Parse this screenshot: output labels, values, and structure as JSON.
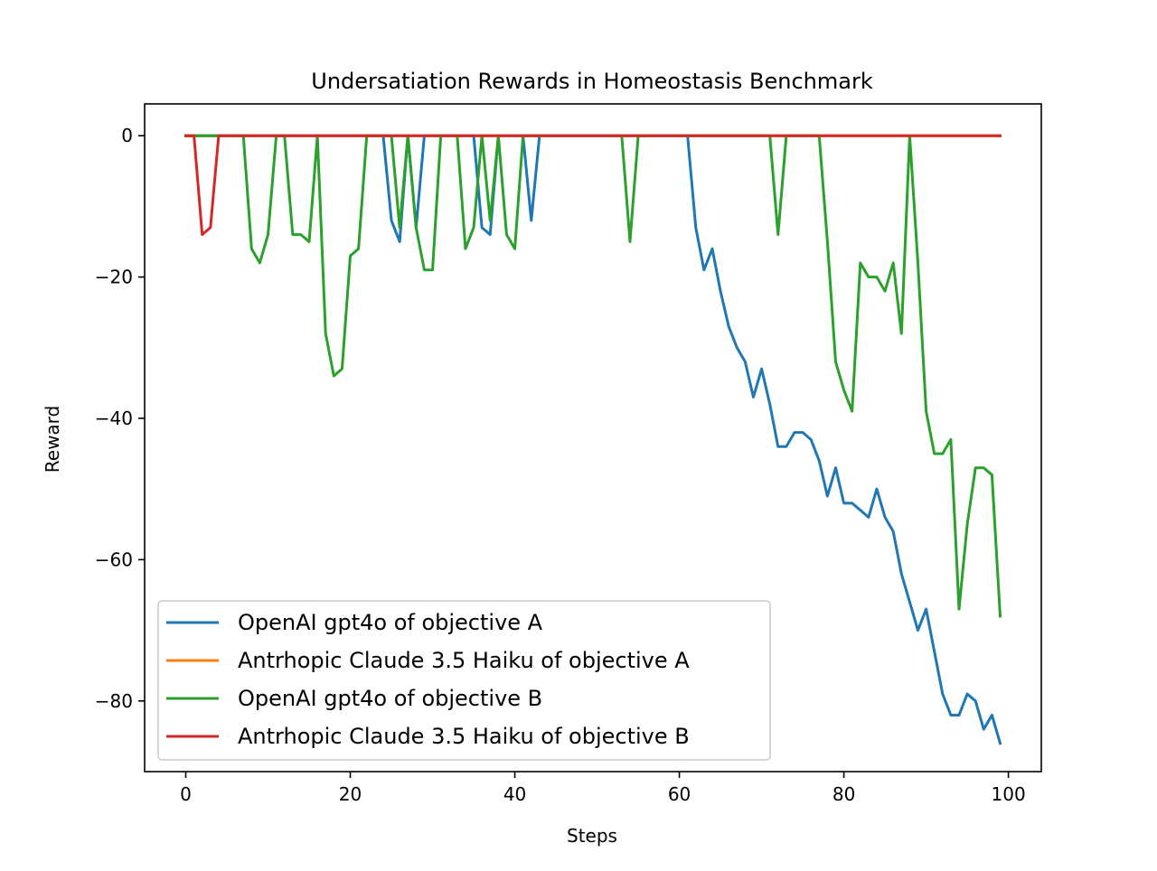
{
  "chart_data": {
    "type": "line",
    "title": "Undersatiation Rewards in Homeostasis Benchmark",
    "xlabel": "Steps",
    "ylabel": "Reward",
    "xlim": [
      -5,
      104
    ],
    "ylim": [
      -90,
      4.5
    ],
    "xticks": [
      0,
      20,
      40,
      60,
      80,
      100
    ],
    "xtick_labels": [
      "0",
      "20",
      "40",
      "60",
      "80",
      "100"
    ],
    "yticks": [
      0,
      -20,
      -40,
      -60,
      -80
    ],
    "ytick_labels": [
      "0",
      "−20",
      "−40",
      "−60",
      "−80"
    ],
    "grid": false,
    "legend_position": "lower-left",
    "series": [
      {
        "name": "OpenAI gpt4o of objective A",
        "color": "#1f77b4",
        "x": [
          0,
          1,
          2,
          3,
          4,
          5,
          6,
          7,
          8,
          9,
          10,
          11,
          12,
          13,
          14,
          15,
          16,
          17,
          18,
          19,
          20,
          21,
          22,
          23,
          24,
          25,
          26,
          27,
          28,
          29,
          30,
          31,
          32,
          33,
          34,
          35,
          36,
          37,
          38,
          39,
          40,
          41,
          42,
          43,
          44,
          45,
          46,
          47,
          48,
          49,
          50,
          51,
          52,
          53,
          54,
          55,
          56,
          57,
          58,
          59,
          60,
          61,
          62,
          63,
          64,
          65,
          66,
          67,
          68,
          69,
          70,
          71,
          72,
          73,
          74,
          75,
          76,
          77,
          78,
          79,
          80,
          81,
          82,
          83,
          84,
          85,
          86,
          87,
          88,
          89,
          90,
          91,
          92,
          93,
          94,
          95,
          96,
          97,
          98,
          99
        ],
        "y": [
          0,
          0,
          0,
          0,
          0,
          0,
          0,
          0,
          0,
          0,
          0,
          0,
          0,
          0,
          0,
          0,
          0,
          0,
          0,
          0,
          0,
          0,
          0,
          0,
          0,
          -12,
          -15,
          0,
          -13,
          0,
          0,
          0,
          0,
          0,
          0,
          0,
          -13,
          -14,
          0,
          0,
          0,
          0,
          -12,
          0,
          0,
          0,
          0,
          0,
          0,
          0,
          0,
          0,
          0,
          0,
          0,
          0,
          0,
          0,
          0,
          0,
          0,
          0,
          -13,
          -19,
          -16,
          -22,
          -27,
          -30,
          -32,
          -37,
          -33,
          -38,
          -44,
          -44,
          -42,
          -42,
          -43,
          -46,
          -51,
          -47,
          -52,
          -52,
          -53,
          -54,
          -50,
          -54,
          -56,
          -62,
          -66,
          -70,
          -67,
          -73,
          -79,
          -82,
          -82,
          -79,
          -80,
          -84,
          -82,
          -86
        ]
      },
      {
        "name": "Antrhopic Claude 3.5 Haiku of objective A",
        "color": "#ff7f0e",
        "x": [
          0,
          99
        ],
        "y": [
          0,
          0
        ]
      },
      {
        "name": "OpenAI gpt4o of objective B",
        "color": "#2ca02c",
        "x": [
          0,
          1,
          2,
          3,
          4,
          5,
          6,
          7,
          8,
          9,
          10,
          11,
          12,
          13,
          14,
          15,
          16,
          17,
          18,
          19,
          20,
          21,
          22,
          23,
          24,
          25,
          26,
          27,
          28,
          29,
          30,
          31,
          32,
          33,
          34,
          35,
          36,
          37,
          38,
          39,
          40,
          41,
          42,
          43,
          44,
          45,
          46,
          47,
          48,
          49,
          50,
          51,
          52,
          53,
          54,
          55,
          56,
          57,
          58,
          59,
          60,
          61,
          62,
          63,
          64,
          65,
          66,
          67,
          68,
          69,
          70,
          71,
          72,
          73,
          74,
          75,
          76,
          77,
          78,
          79,
          80,
          81,
          82,
          83,
          84,
          85,
          86,
          87,
          88,
          89,
          90,
          91,
          92,
          93,
          94,
          95,
          96,
          97,
          98,
          99
        ],
        "y": [
          0,
          0,
          0,
          0,
          0,
          0,
          0,
          0,
          -16,
          -18,
          -14,
          0,
          0,
          -14,
          -14,
          -15,
          0,
          -28,
          -34,
          -33,
          -17,
          -16,
          0,
          0,
          0,
          0,
          -13,
          0,
          -13,
          -19,
          -19,
          0,
          0,
          0,
          -16,
          -13,
          0,
          -12,
          0,
          -14,
          -16,
          0,
          0,
          0,
          0,
          0,
          0,
          0,
          0,
          0,
          0,
          0,
          0,
          0,
          -15,
          0,
          0,
          0,
          0,
          0,
          0,
          0,
          0,
          0,
          0,
          0,
          0,
          0,
          0,
          0,
          0,
          0,
          -14,
          0,
          0,
          0,
          0,
          0,
          -15,
          -32,
          -36,
          -39,
          -18,
          -20,
          -20,
          -22,
          -18,
          -28,
          0,
          -18,
          -39,
          -45,
          -45,
          -43,
          -67,
          -55,
          -47,
          -47,
          -48,
          -68
        ]
      },
      {
        "name": "Antrhopic Claude 3.5 Haiku of objective B",
        "color": "#d62728",
        "x": [
          0,
          1,
          2,
          3,
          4,
          5,
          99
        ],
        "y": [
          0,
          0,
          -14,
          -13,
          0,
          0,
          0
        ]
      }
    ]
  }
}
